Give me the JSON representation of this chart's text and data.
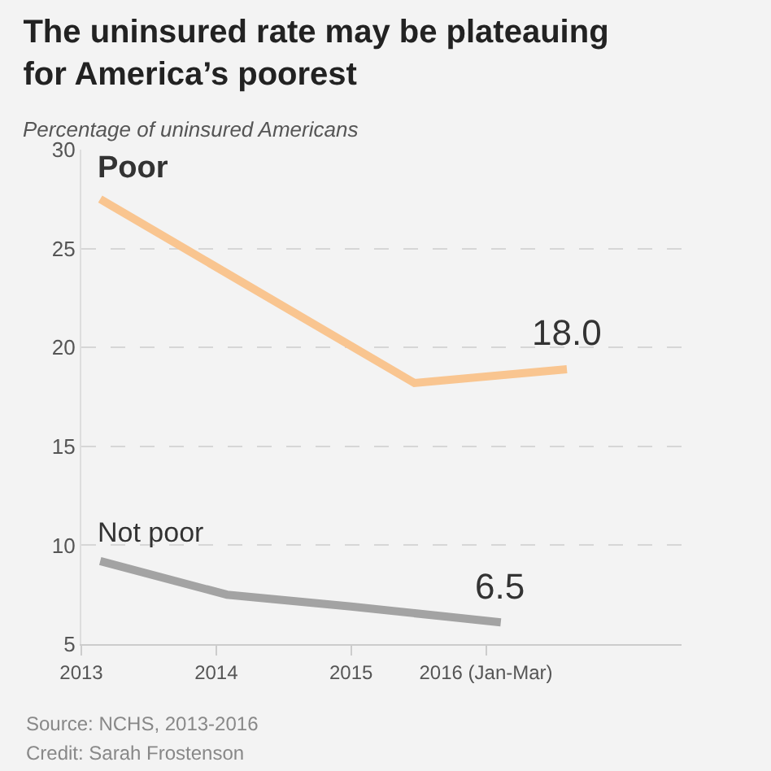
{
  "chart_data": {
    "type": "line",
    "title": "The uninsured rate may be plateauing\nfor America’s poorest",
    "subtitle": "Percentage of uninsured Americans",
    "series": [
      {
        "name": "Poor",
        "color": "#f9c590",
        "x": [
          2013.14,
          2015.47,
          2016.6
        ],
        "values": [
          27.5,
          18.2,
          18.9
        ]
      },
      {
        "name": "Not poor",
        "color": "#a3a3a3",
        "x": [
          2013.14,
          2014.08,
          2015.0,
          2016.11
        ],
        "values": [
          9.2,
          7.5,
          6.9,
          6.1
        ]
      }
    ],
    "xlim": [
      2013,
      2017.45
    ],
    "xticks": [
      2013,
      2014,
      2015,
      {
        "value": 2016,
        "label": "2016 (Jan-Mar)"
      }
    ],
    "ylim": [
      5,
      30
    ],
    "yticks": [
      5,
      10,
      15,
      20,
      25,
      30
    ],
    "grid": "y",
    "legend": false,
    "marker": "none",
    "line_style": "solid",
    "annotations": [
      {
        "text": "18.0",
        "x": 2016.6,
        "y": 18.9
      },
      {
        "text": "6.5",
        "x": 2016.11,
        "y": 6.1
      },
      "Source: NCHS, 2013-2016",
      "Credit: Sarah Frostenson"
    ]
  }
}
